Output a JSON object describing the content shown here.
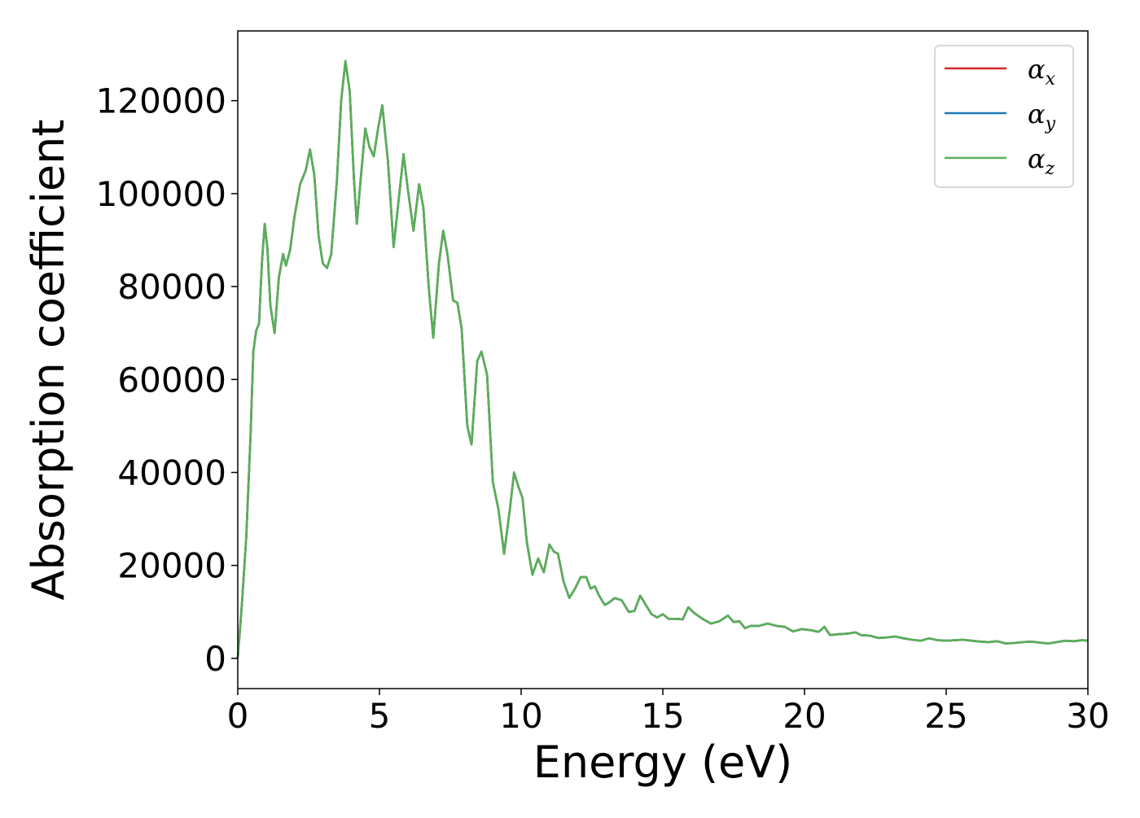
{
  "chart_data": {
    "type": "line",
    "xlabel": "Energy (eV)",
    "ylabel": "Absorption coefficient",
    "xlim": [
      0,
      30
    ],
    "ylim": [
      -6500,
      135000
    ],
    "xticks": [
      0,
      5,
      10,
      15,
      20,
      25,
      30
    ],
    "yticks": [
      0,
      20000,
      40000,
      60000,
      80000,
      100000,
      120000
    ],
    "grid": false,
    "legend_position": "top-right",
    "series": [
      {
        "name": "αx",
        "symbol": "α",
        "subscript": "x",
        "color": "#d62728",
        "x": [
          0,
          0.15,
          0.3,
          0.45,
          0.55,
          0.65,
          0.75,
          0.85,
          0.95,
          1.05,
          1.15,
          1.3,
          1.45,
          1.6,
          1.7,
          1.85,
          2.0,
          2.2,
          2.4,
          2.55,
          2.7,
          2.85,
          3.0,
          3.15,
          3.3,
          3.5,
          3.65,
          3.8,
          3.95,
          4.1,
          4.2,
          4.35,
          4.5,
          4.65,
          4.8,
          4.95,
          5.1,
          5.3,
          5.5,
          5.65,
          5.85,
          6.0,
          6.2,
          6.4,
          6.55,
          6.75,
          6.9,
          7.1,
          7.25,
          7.4,
          7.6,
          7.75,
          7.9,
          8.1,
          8.25,
          8.45,
          8.6,
          8.8,
          9.0,
          9.2,
          9.4,
          9.6,
          9.75,
          9.9,
          10.05,
          10.2,
          10.4,
          10.6,
          10.8,
          11.0,
          11.15,
          11.3,
          11.5,
          11.7,
          11.9,
          12.1,
          12.3,
          12.45,
          12.6,
          12.75,
          12.95,
          13.1,
          13.3,
          13.55,
          13.8,
          14.0,
          14.2,
          14.4,
          14.6,
          14.8,
          15.0,
          15.2,
          15.45,
          15.7,
          15.9,
          16.1,
          16.4,
          16.7,
          17.0,
          17.3,
          17.5,
          17.7,
          17.9,
          18.1,
          18.4,
          18.7,
          19.0,
          19.3,
          19.6,
          19.9,
          20.2,
          20.5,
          20.7,
          20.9,
          21.2,
          21.5,
          21.8,
          22.0,
          22.3,
          22.6,
          22.9,
          23.2,
          23.5,
          23.8,
          24.1,
          24.4,
          24.7,
          25.0,
          25.3,
          25.6,
          25.9,
          26.2,
          26.5,
          26.8,
          27.1,
          27.4,
          27.7,
          28.0,
          28.3,
          28.6,
          28.9,
          29.2,
          29.5,
          29.8,
          30.0
        ],
        "y": [
          0,
          12000,
          26000,
          48000,
          66000,
          70500,
          72000,
          85000,
          93500,
          88000,
          76000,
          70000,
          82000,
          87000,
          84500,
          88000,
          95000,
          102000,
          105000,
          109500,
          104000,
          91000,
          85000,
          84000,
          87000,
          103000,
          120000,
          128500,
          122000,
          103000,
          93500,
          104000,
          114000,
          110000,
          108000,
          114000,
          119000,
          107000,
          88500,
          97000,
          108500,
          101000,
          92000,
          102000,
          97000,
          79000,
          69000,
          85000,
          92000,
          87000,
          77000,
          76500,
          71000,
          50000,
          46000,
          64000,
          66000,
          61000,
          38000,
          32000,
          22500,
          32000,
          40000,
          37000,
          34500,
          25000,
          18000,
          21500,
          18500,
          24500,
          23000,
          22500,
          16500,
          13000,
          15000,
          17500,
          17500,
          15000,
          15500,
          13500,
          11500,
          12000,
          13000,
          12500,
          10000,
          10200,
          13500,
          11500,
          9500,
          8800,
          9500,
          8500,
          8500,
          8400,
          11000,
          9800,
          8500,
          7500,
          8000,
          9200,
          7800,
          8000,
          6500,
          7000,
          7000,
          7500,
          7000,
          6800,
          5800,
          6300,
          6100,
          5700,
          6800,
          5000,
          5200,
          5300,
          5600,
          5000,
          4900,
          4400,
          4500,
          4700,
          4300,
          4000,
          3800,
          4300,
          3900,
          3800,
          3900,
          4000,
          3800,
          3600,
          3500,
          3700,
          3200,
          3300,
          3500,
          3600,
          3400,
          3200,
          3500,
          3800,
          3700,
          3900,
          3800
        ]
      },
      {
        "name": "αy",
        "symbol": "α",
        "subscript": "y",
        "color": "#1f77b4",
        "x": [
          0,
          0.15,
          0.3,
          0.45,
          0.55,
          0.65,
          0.75,
          0.85,
          0.95,
          1.05,
          1.15,
          1.3,
          1.45,
          1.6,
          1.7,
          1.85,
          2.0,
          2.2,
          2.4,
          2.55,
          2.7,
          2.85,
          3.0,
          3.15,
          3.3,
          3.5,
          3.65,
          3.8,
          3.95,
          4.1,
          4.2,
          4.35,
          4.5,
          4.65,
          4.8,
          4.95,
          5.1,
          5.3,
          5.5,
          5.65,
          5.85,
          6.0,
          6.2,
          6.4,
          6.55,
          6.75,
          6.9,
          7.1,
          7.25,
          7.4,
          7.6,
          7.75,
          7.9,
          8.1,
          8.25,
          8.45,
          8.6,
          8.8,
          9.0,
          9.2,
          9.4,
          9.6,
          9.75,
          9.9,
          10.05,
          10.2,
          10.4,
          10.6,
          10.8,
          11.0,
          11.15,
          11.3,
          11.5,
          11.7,
          11.9,
          12.1,
          12.3,
          12.45,
          12.6,
          12.75,
          12.95,
          13.1,
          13.3,
          13.55,
          13.8,
          14.0,
          14.2,
          14.4,
          14.6,
          14.8,
          15.0,
          15.2,
          15.45,
          15.7,
          15.9,
          16.1,
          16.4,
          16.7,
          17.0,
          17.3,
          17.5,
          17.7,
          17.9,
          18.1,
          18.4,
          18.7,
          19.0,
          19.3,
          19.6,
          19.9,
          20.2,
          20.5,
          20.7,
          20.9,
          21.2,
          21.5,
          21.8,
          22.0,
          22.3,
          22.6,
          22.9,
          23.2,
          23.5,
          23.8,
          24.1,
          24.4,
          24.7,
          25.0,
          25.3,
          25.6,
          25.9,
          26.2,
          26.5,
          26.8,
          27.1,
          27.4,
          27.7,
          28.0,
          28.3,
          28.6,
          28.9,
          29.2,
          29.5,
          29.8,
          30.0
        ],
        "y": [
          0,
          12000,
          26000,
          48000,
          66000,
          70500,
          72000,
          85000,
          93500,
          88000,
          76000,
          70000,
          82000,
          87000,
          84500,
          88000,
          95000,
          102000,
          105000,
          109500,
          104000,
          91000,
          85000,
          84000,
          87000,
          103000,
          120000,
          128500,
          122000,
          103000,
          93500,
          104000,
          114000,
          110000,
          108000,
          114000,
          119000,
          107000,
          88500,
          97000,
          108500,
          101000,
          92000,
          102000,
          97000,
          79000,
          69000,
          85000,
          92000,
          87000,
          77000,
          76500,
          71000,
          50000,
          46000,
          64000,
          66000,
          61000,
          38000,
          32000,
          22500,
          32000,
          40000,
          37000,
          34500,
          25000,
          18000,
          21500,
          18500,
          24500,
          23000,
          22500,
          16500,
          13000,
          15000,
          17500,
          17500,
          15000,
          15500,
          13500,
          11500,
          12000,
          13000,
          12500,
          10000,
          10200,
          13500,
          11500,
          9500,
          8800,
          9500,
          8500,
          8500,
          8400,
          11000,
          9800,
          8500,
          7500,
          8000,
          9200,
          7800,
          8000,
          6500,
          7000,
          7000,
          7500,
          7000,
          6800,
          5800,
          6300,
          6100,
          5700,
          6800,
          5000,
          5200,
          5300,
          5600,
          5000,
          4900,
          4400,
          4500,
          4700,
          4300,
          4000,
          3800,
          4300,
          3900,
          3800,
          3900,
          4000,
          3800,
          3600,
          3500,
          3700,
          3200,
          3300,
          3500,
          3600,
          3400,
          3200,
          3500,
          3800,
          3700,
          3900,
          3800
        ]
      },
      {
        "name": "αz",
        "symbol": "α",
        "subscript": "z",
        "color": "#5aaf58",
        "x": [
          0,
          0.15,
          0.3,
          0.45,
          0.55,
          0.65,
          0.75,
          0.85,
          0.95,
          1.05,
          1.15,
          1.3,
          1.45,
          1.6,
          1.7,
          1.85,
          2.0,
          2.2,
          2.4,
          2.55,
          2.7,
          2.85,
          3.0,
          3.15,
          3.3,
          3.5,
          3.65,
          3.8,
          3.95,
          4.1,
          4.2,
          4.35,
          4.5,
          4.65,
          4.8,
          4.95,
          5.1,
          5.3,
          5.5,
          5.65,
          5.85,
          6.0,
          6.2,
          6.4,
          6.55,
          6.75,
          6.9,
          7.1,
          7.25,
          7.4,
          7.6,
          7.75,
          7.9,
          8.1,
          8.25,
          8.45,
          8.6,
          8.8,
          9.0,
          9.2,
          9.4,
          9.6,
          9.75,
          9.9,
          10.05,
          10.2,
          10.4,
          10.6,
          10.8,
          11.0,
          11.15,
          11.3,
          11.5,
          11.7,
          11.9,
          12.1,
          12.3,
          12.45,
          12.6,
          12.75,
          12.95,
          13.1,
          13.3,
          13.55,
          13.8,
          14.0,
          14.2,
          14.4,
          14.6,
          14.8,
          15.0,
          15.2,
          15.45,
          15.7,
          15.9,
          16.1,
          16.4,
          16.7,
          17.0,
          17.3,
          17.5,
          17.7,
          17.9,
          18.1,
          18.4,
          18.7,
          19.0,
          19.3,
          19.6,
          19.9,
          20.2,
          20.5,
          20.7,
          20.9,
          21.2,
          21.5,
          21.8,
          22.0,
          22.3,
          22.6,
          22.9,
          23.2,
          23.5,
          23.8,
          24.1,
          24.4,
          24.7,
          25.0,
          25.3,
          25.6,
          25.9,
          26.2,
          26.5,
          26.8,
          27.1,
          27.4,
          27.7,
          28.0,
          28.3,
          28.6,
          28.9,
          29.2,
          29.5,
          29.8,
          30.0
        ],
        "y": [
          0,
          12000,
          26000,
          48000,
          66000,
          70500,
          72000,
          85000,
          93500,
          88000,
          76000,
          70000,
          82000,
          87000,
          84500,
          88000,
          95000,
          102000,
          105000,
          109500,
          104000,
          91000,
          85000,
          84000,
          87000,
          103000,
          120000,
          128500,
          122000,
          103000,
          93500,
          104000,
          114000,
          110000,
          108000,
          114000,
          119000,
          107000,
          88500,
          97000,
          108500,
          101000,
          92000,
          102000,
          97000,
          79000,
          69000,
          85000,
          92000,
          87000,
          77000,
          76500,
          71000,
          50000,
          46000,
          64000,
          66000,
          61000,
          38000,
          32000,
          22500,
          32000,
          40000,
          37000,
          34500,
          25000,
          18000,
          21500,
          18500,
          24500,
          23000,
          22500,
          16500,
          13000,
          15000,
          17500,
          17500,
          15000,
          15500,
          13500,
          11500,
          12000,
          13000,
          12500,
          10000,
          10200,
          13500,
          11500,
          9500,
          8800,
          9500,
          8500,
          8500,
          8400,
          11000,
          9800,
          8500,
          7500,
          8000,
          9200,
          7800,
          8000,
          6500,
          7000,
          7000,
          7500,
          7000,
          6800,
          5800,
          6300,
          6100,
          5700,
          6800,
          5000,
          5200,
          5300,
          5600,
          5000,
          4900,
          4400,
          4500,
          4700,
          4300,
          4000,
          3800,
          4300,
          3900,
          3800,
          3900,
          4000,
          3800,
          3600,
          3500,
          3700,
          3200,
          3300,
          3500,
          3600,
          3400,
          3200,
          3500,
          3800,
          3700,
          3900,
          3800
        ]
      }
    ]
  }
}
